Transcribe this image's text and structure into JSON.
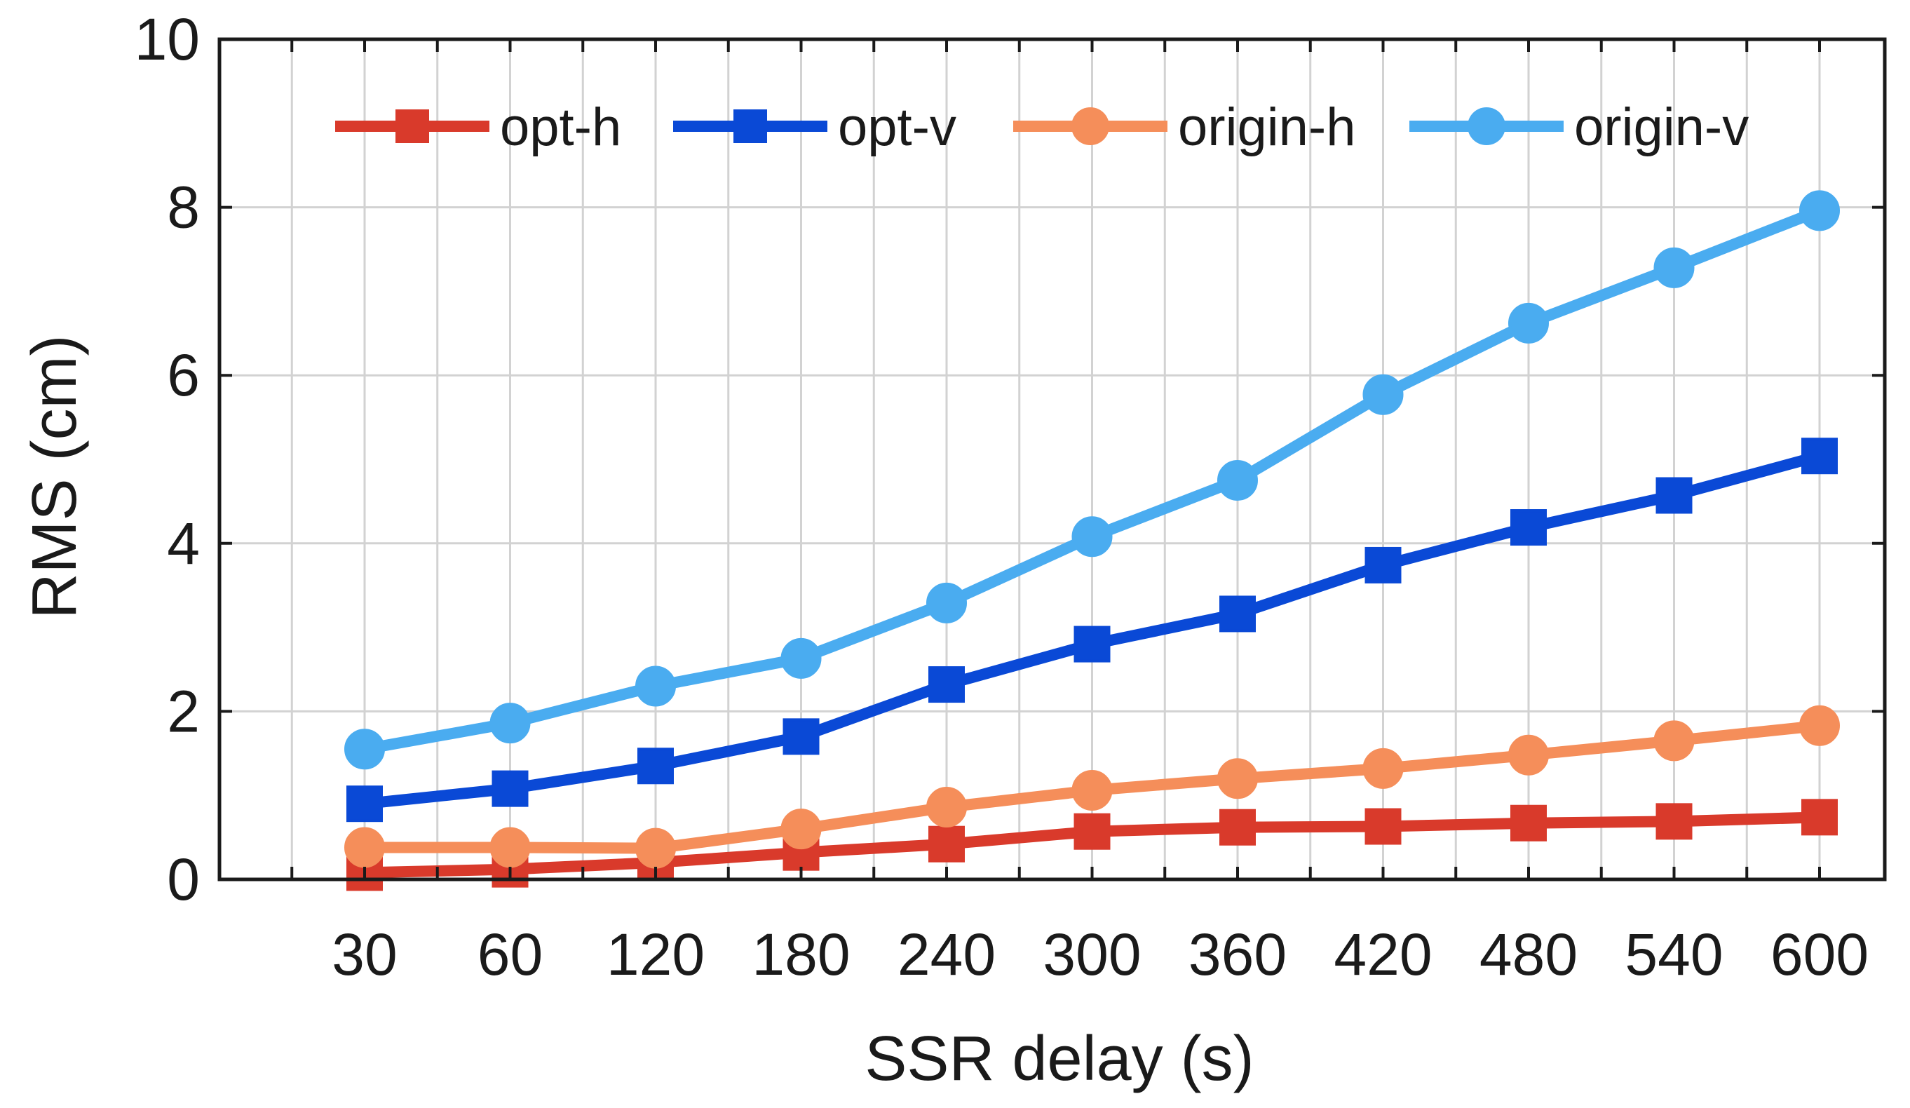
{
  "chart_data": {
    "type": "line",
    "title": "",
    "xlabel": "SSR delay (s)",
    "ylabel": "RMS (cm)",
    "categories": [
      "30",
      "60",
      "120",
      "180",
      "240",
      "300",
      "360",
      "420",
      "480",
      "540",
      "600"
    ],
    "ylim": [
      0,
      10
    ],
    "yticks": [
      "0",
      "2",
      "4",
      "6",
      "8",
      "10"
    ],
    "grid": true,
    "legend_position": "top",
    "series": [
      {
        "name": "opt-h",
        "marker": "square",
        "color": "#d93a2b",
        "values": [
          0.08,
          0.12,
          0.2,
          0.32,
          0.42,
          0.57,
          0.62,
          0.63,
          0.67,
          0.69,
          0.74
        ]
      },
      {
        "name": "opt-v",
        "marker": "square",
        "color": "#0a49d6",
        "values": [
          0.9,
          1.08,
          1.35,
          1.7,
          2.32,
          2.8,
          3.16,
          3.74,
          4.19,
          4.57,
          5.04
        ]
      },
      {
        "name": "origin-h",
        "marker": "circle",
        "color": "#f58e5a",
        "values": [
          0.38,
          0.38,
          0.37,
          0.6,
          0.86,
          1.06,
          1.2,
          1.32,
          1.48,
          1.65,
          1.83
        ]
      },
      {
        "name": "origin-v",
        "marker": "circle",
        "color": "#4aacf0",
        "values": [
          1.55,
          1.86,
          2.3,
          2.63,
          3.29,
          4.08,
          4.75,
          5.77,
          6.62,
          7.28,
          7.96
        ]
      }
    ]
  }
}
